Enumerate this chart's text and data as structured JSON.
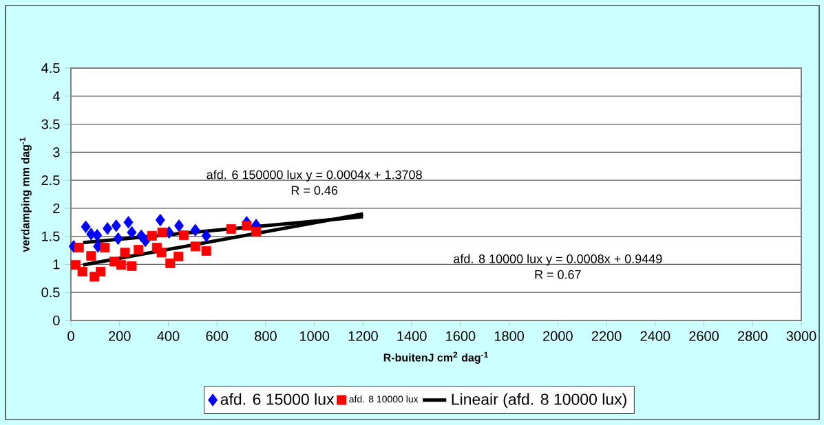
{
  "chart_data": {
    "type": "scatter",
    "xlabel": "R-buitenJ cm$^{2}$ dag$^{-1}$",
    "ylabel": "verdamping mm dag$^{-1}$",
    "xlim": [
      0,
      3000
    ],
    "xticks": [
      0,
      200,
      400,
      600,
      800,
      1000,
      1200,
      1400,
      1600,
      1800,
      2000,
      2200,
      2400,
      2600,
      2800,
      3000
    ],
    "ylim": [
      0,
      4.5
    ],
    "yticks": [
      0,
      0.5,
      1,
      1.5,
      2,
      2.5,
      3,
      3.5,
      4,
      4.5
    ],
    "grid": "y",
    "legend": "bottom",
    "annotations": [
      "afd. 6 150000 lux  y = 0.0004x + 1.3708",
      "R = 0.46",
      "afd. 8 10000 lux  y = 0.0008x + 0.9449",
      "R = 0.67"
    ],
    "series": [
      {
        "name": "afd. 6 15000 lux",
        "marker": "diamond",
        "color": "#0000ff",
        "x": [
          11,
          61,
          83,
          108,
          150,
          186,
          236,
          250,
          289,
          367,
          403,
          444,
          511,
          556,
          722,
          761,
          194,
          111,
          306
        ],
        "values": [
          1.32,
          1.67,
          1.54,
          1.52,
          1.64,
          1.69,
          1.75,
          1.57,
          1.51,
          1.79,
          1.57,
          1.69,
          1.61,
          1.51,
          1.75,
          1.7,
          1.46,
          1.32,
          1.42
        ]
      },
      {
        "name": "afd. 8 10000 lux",
        "marker": "square",
        "color": "#ff0000",
        "x": [
          19,
          47,
          97,
          122,
          33,
          83,
          139,
          178,
          206,
          250,
          278,
          222,
          333,
          375,
          372,
          408,
          442,
          464,
          511,
          556,
          658,
          722,
          761,
          353
        ],
        "values": [
          0.99,
          0.87,
          0.78,
          0.87,
          1.3,
          1.15,
          1.3,
          1.05,
          0.99,
          0.97,
          1.26,
          1.21,
          1.51,
          1.57,
          1.21,
          1.02,
          1.14,
          1.52,
          1.32,
          1.24,
          1.63,
          1.69,
          1.58,
          1.3
        ]
      },
      {
        "type": "line",
        "marker": "none",
        "color": "#000000",
        "x": [
          50,
          1200
        ],
        "values": [
          1.39,
          1.85
        ]
      },
      {
        "name": "Lineair (afd. 8 10000 lux)",
        "type": "line",
        "marker": "none",
        "color": "#000000",
        "x": [
          50,
          1200
        ],
        "values": [
          0.99,
          1.9
        ]
      }
    ]
  }
}
